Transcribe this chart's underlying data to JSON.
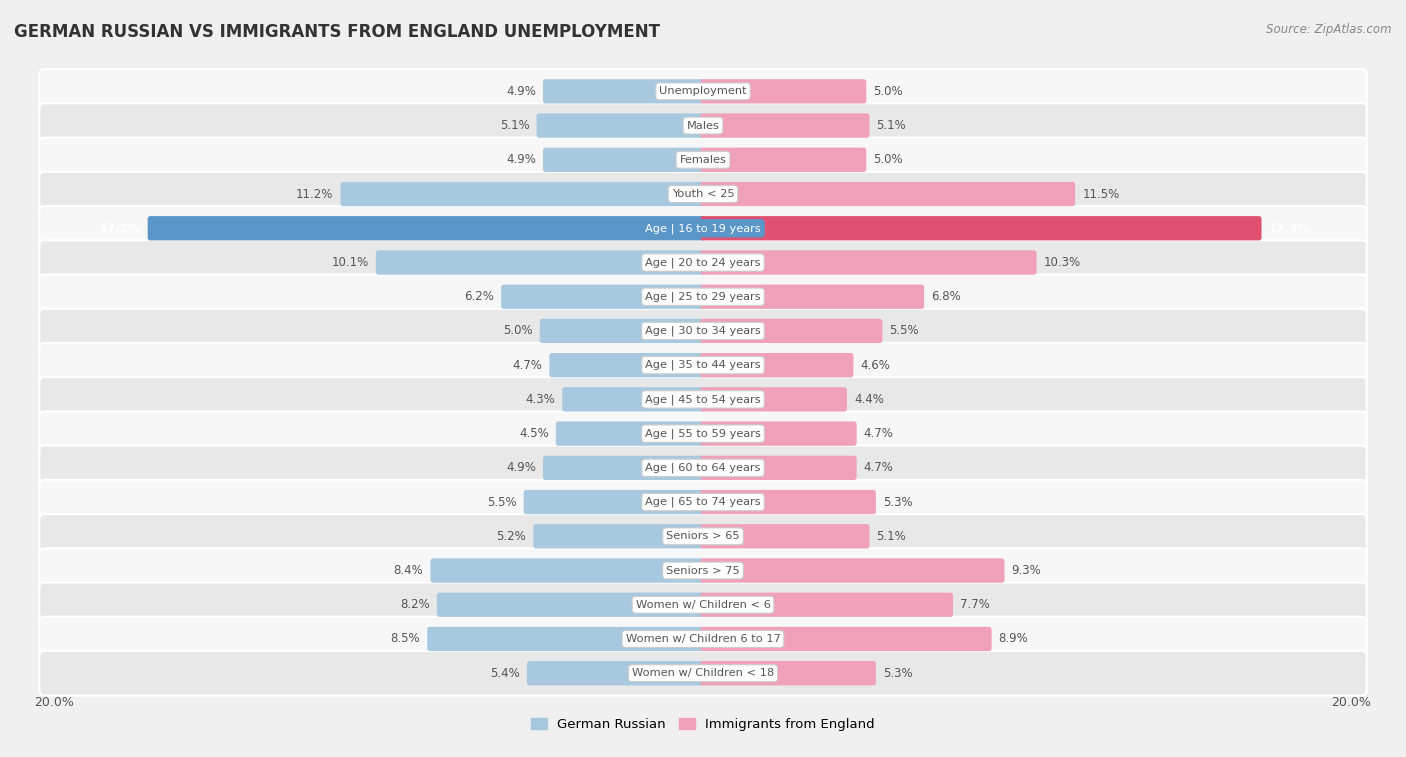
{
  "title": "GERMAN RUSSIAN VS IMMIGRANTS FROM ENGLAND UNEMPLOYMENT",
  "source": "Source: ZipAtlas.com",
  "categories": [
    "Unemployment",
    "Males",
    "Females",
    "Youth < 25",
    "Age | 16 to 19 years",
    "Age | 20 to 24 years",
    "Age | 25 to 29 years",
    "Age | 30 to 34 years",
    "Age | 35 to 44 years",
    "Age | 45 to 54 years",
    "Age | 55 to 59 years",
    "Age | 60 to 64 years",
    "Age | 65 to 74 years",
    "Seniors > 65",
    "Seniors > 75",
    "Women w/ Children < 6",
    "Women w/ Children 6 to 17",
    "Women w/ Children < 18"
  ],
  "left_values": [
    4.9,
    5.1,
    4.9,
    11.2,
    17.2,
    10.1,
    6.2,
    5.0,
    4.7,
    4.3,
    4.5,
    4.9,
    5.5,
    5.2,
    8.4,
    8.2,
    8.5,
    5.4
  ],
  "right_values": [
    5.0,
    5.1,
    5.0,
    11.5,
    17.3,
    10.3,
    6.8,
    5.5,
    4.6,
    4.4,
    4.7,
    4.7,
    5.3,
    5.1,
    9.3,
    7.7,
    8.9,
    5.3
  ],
  "left_color": "#a8c8e0",
  "right_color": "#f0a0b8",
  "left_label": "German Russian",
  "right_label": "Immigrants from England",
  "x_max": 20.0,
  "bg_color": "#f0f0f0",
  "row_bg_light": "#f7f7f7",
  "row_bg_dark": "#e8e8e8",
  "highlight_row": 4,
  "highlight_left_color": "#5b96c8",
  "highlight_right_color": "#e05070",
  "label_bg": "#ffffff",
  "label_font_color": "#555555",
  "value_font_color": "#555555",
  "title_color": "#333333",
  "source_color": "#888888"
}
